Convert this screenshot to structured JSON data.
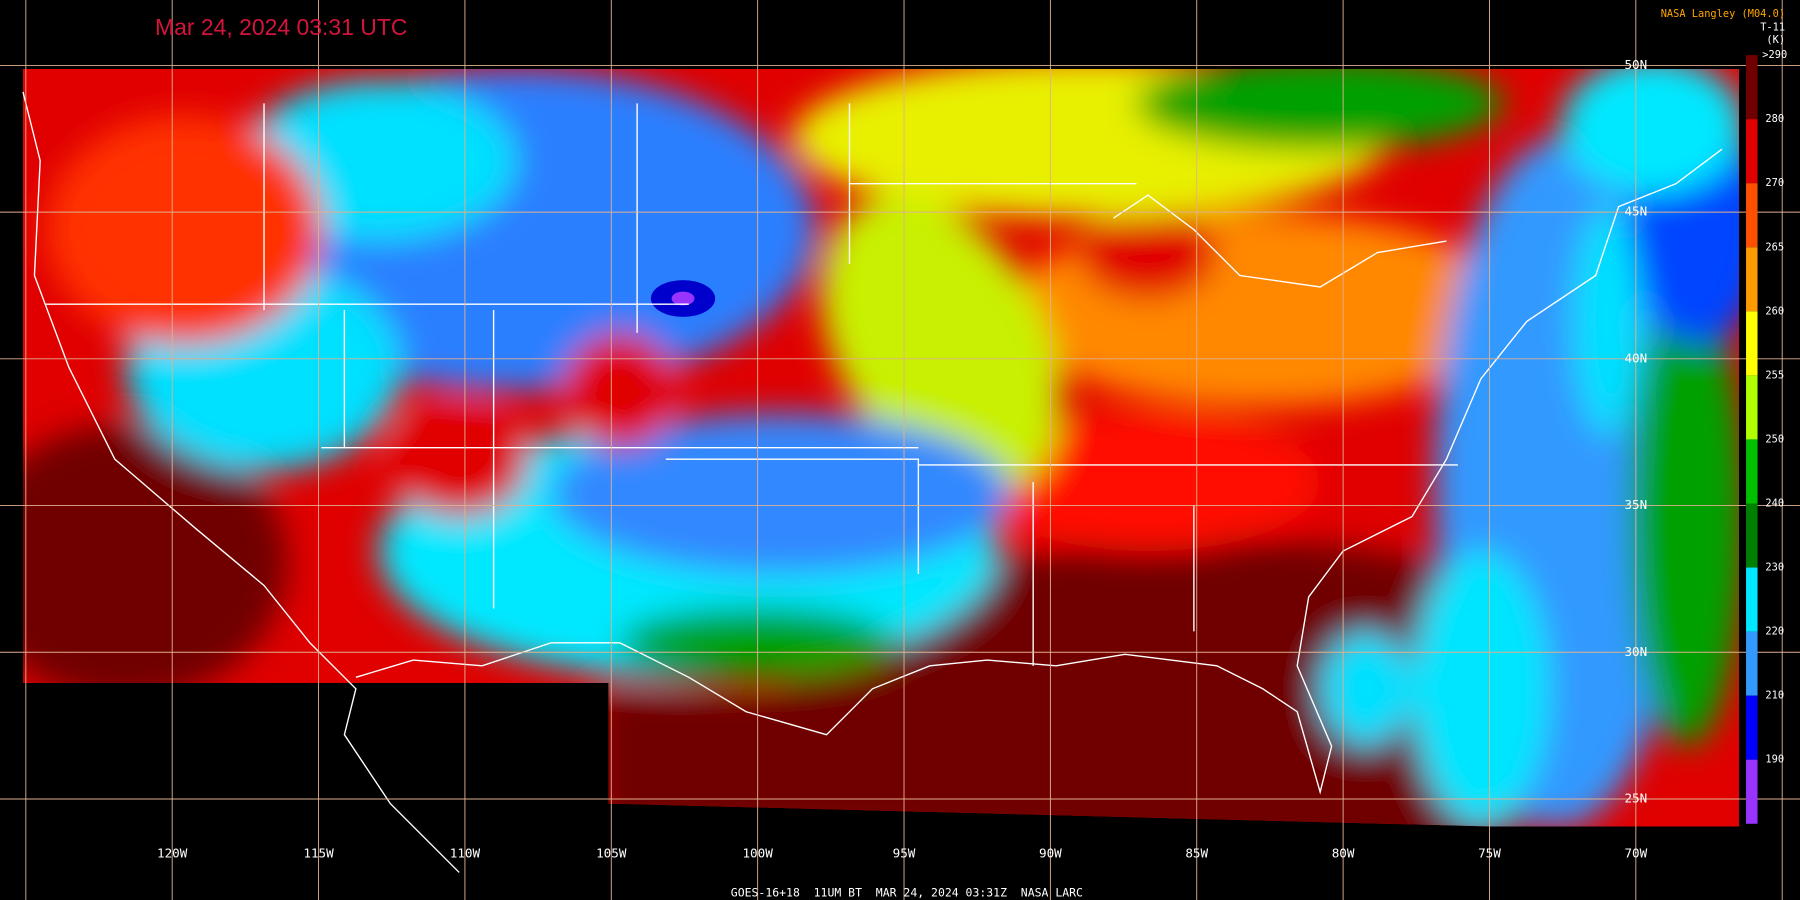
{
  "title": "Mar 24, 2024 03:31 UTC",
  "producer": "NASA Langley (M04.0)",
  "colorbar": {
    "title": "T-11",
    "unit": "(K)",
    "ticks": [
      {
        "value": 290,
        "label": ">290"
      },
      280,
      270,
      265,
      260,
      255,
      250,
      240,
      230,
      220,
      210,
      190
    ]
  },
  "longitude_labels": [
    "120W",
    "115W",
    "110W",
    "105W",
    "100W",
    "95W",
    "90W",
    "85W",
    "80W",
    "75W",
    "70W"
  ],
  "latitude_labels": [
    "50N",
    "45N",
    "40N",
    "35N",
    "30N",
    "25N"
  ],
  "footer": "GOES-16+18  11UM BT  MAR 24, 2024 03:31Z  NASA LARC"
}
